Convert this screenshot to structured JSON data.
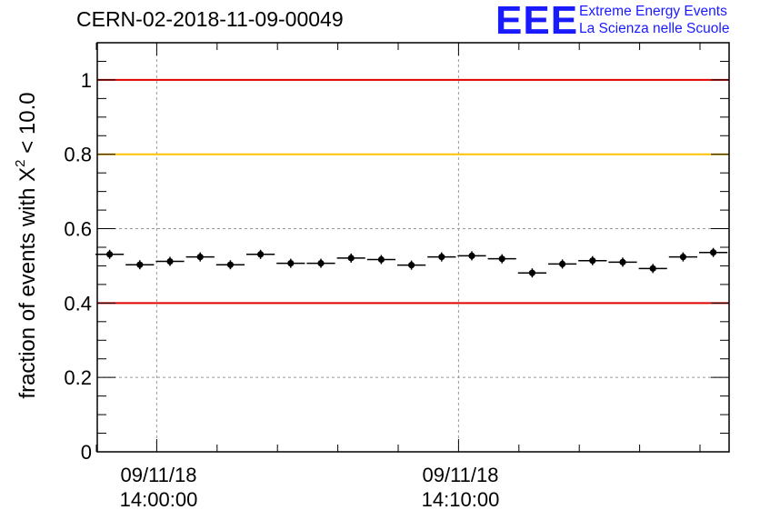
{
  "header": {
    "title": "CERN-02-2018-11-09-00049",
    "logo": "EEE",
    "logo_line1": "Extreme Energy Events",
    "logo_line2": "La Scienza nelle Scuole",
    "brand_color": "#1a1aff"
  },
  "chart_data": {
    "type": "scatter",
    "title": "CERN-02-2018-11-09-00049",
    "ylabel_prefix": "fraction of events with ",
    "ylabel_symbol": "X",
    "ylabel_sup": "2",
    "ylabel_suffix": " < 10.0",
    "ylim": [
      0,
      1.1
    ],
    "yticks": [
      0,
      0.2,
      0.4,
      0.6,
      0.8,
      1
    ],
    "ytick_labels": [
      "0",
      "0.2",
      "0.4",
      "0.6",
      "0.8",
      "1"
    ],
    "x_major_ticks": [
      {
        "date": "09/11/18",
        "time": "14:00:00"
      },
      {
        "date": "09/11/18",
        "time": "14:10:00"
      }
    ],
    "grid": true,
    "reference_lines": [
      {
        "y": 1.0,
        "color": "#e00000"
      },
      {
        "y": 0.8,
        "color": "#ffc000"
      },
      {
        "y": 0.4,
        "color": "#e00000"
      }
    ],
    "points": [
      0.531,
      0.503,
      0.512,
      0.524,
      0.503,
      0.531,
      0.507,
      0.507,
      0.521,
      0.517,
      0.502,
      0.524,
      0.527,
      0.519,
      0.481,
      0.505,
      0.514,
      0.51,
      0.493,
      0.524,
      0.536
    ]
  }
}
